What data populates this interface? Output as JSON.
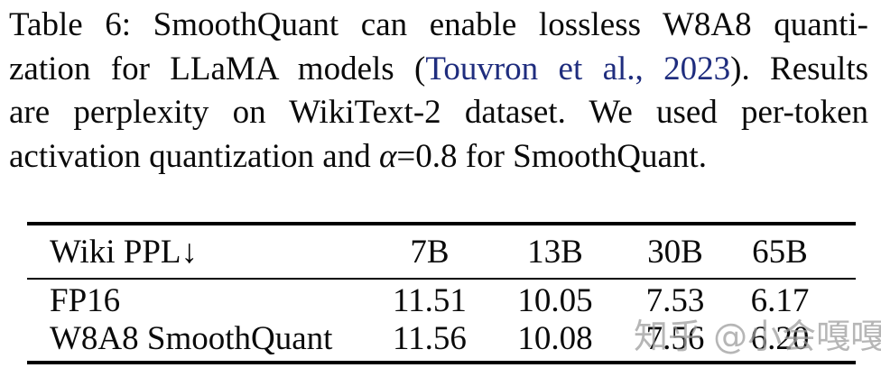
{
  "caption": {
    "line1": "Table 6: SmoothQuant can enable lossless W8A8 quanti-",
    "line2_pre": "zation for LLaMA models (",
    "line2_cite": "Touvron et al., 2023",
    "line2_post": "). Results",
    "line3": "are perplexity on WikiText-2 dataset. We used per-token",
    "line4_pre": "activation quantization and ",
    "line4_alpha": "α",
    "line4_post": "=0.8 for SmoothQuant."
  },
  "table": {
    "header": {
      "label": "Wiki PPL↓",
      "cols": [
        "7B",
        "13B",
        "30B",
        "65B"
      ]
    },
    "rows": [
      {
        "label": "FP16",
        "values": [
          "11.51",
          "10.05",
          "7.53",
          "6.17"
        ]
      },
      {
        "label": "W8A8 SmoothQuant",
        "values": [
          "11.56",
          "10.08",
          "7.56",
          "6.20"
        ]
      }
    ]
  },
  "watermark": {
    "text": "知乎 @小会嘎嘎"
  },
  "colors": {
    "text": "#0a0a0a",
    "citation_link": "#1f2d7e",
    "rule": "#000000",
    "watermark": "#9e9e9e",
    "background": "#ffffff"
  }
}
